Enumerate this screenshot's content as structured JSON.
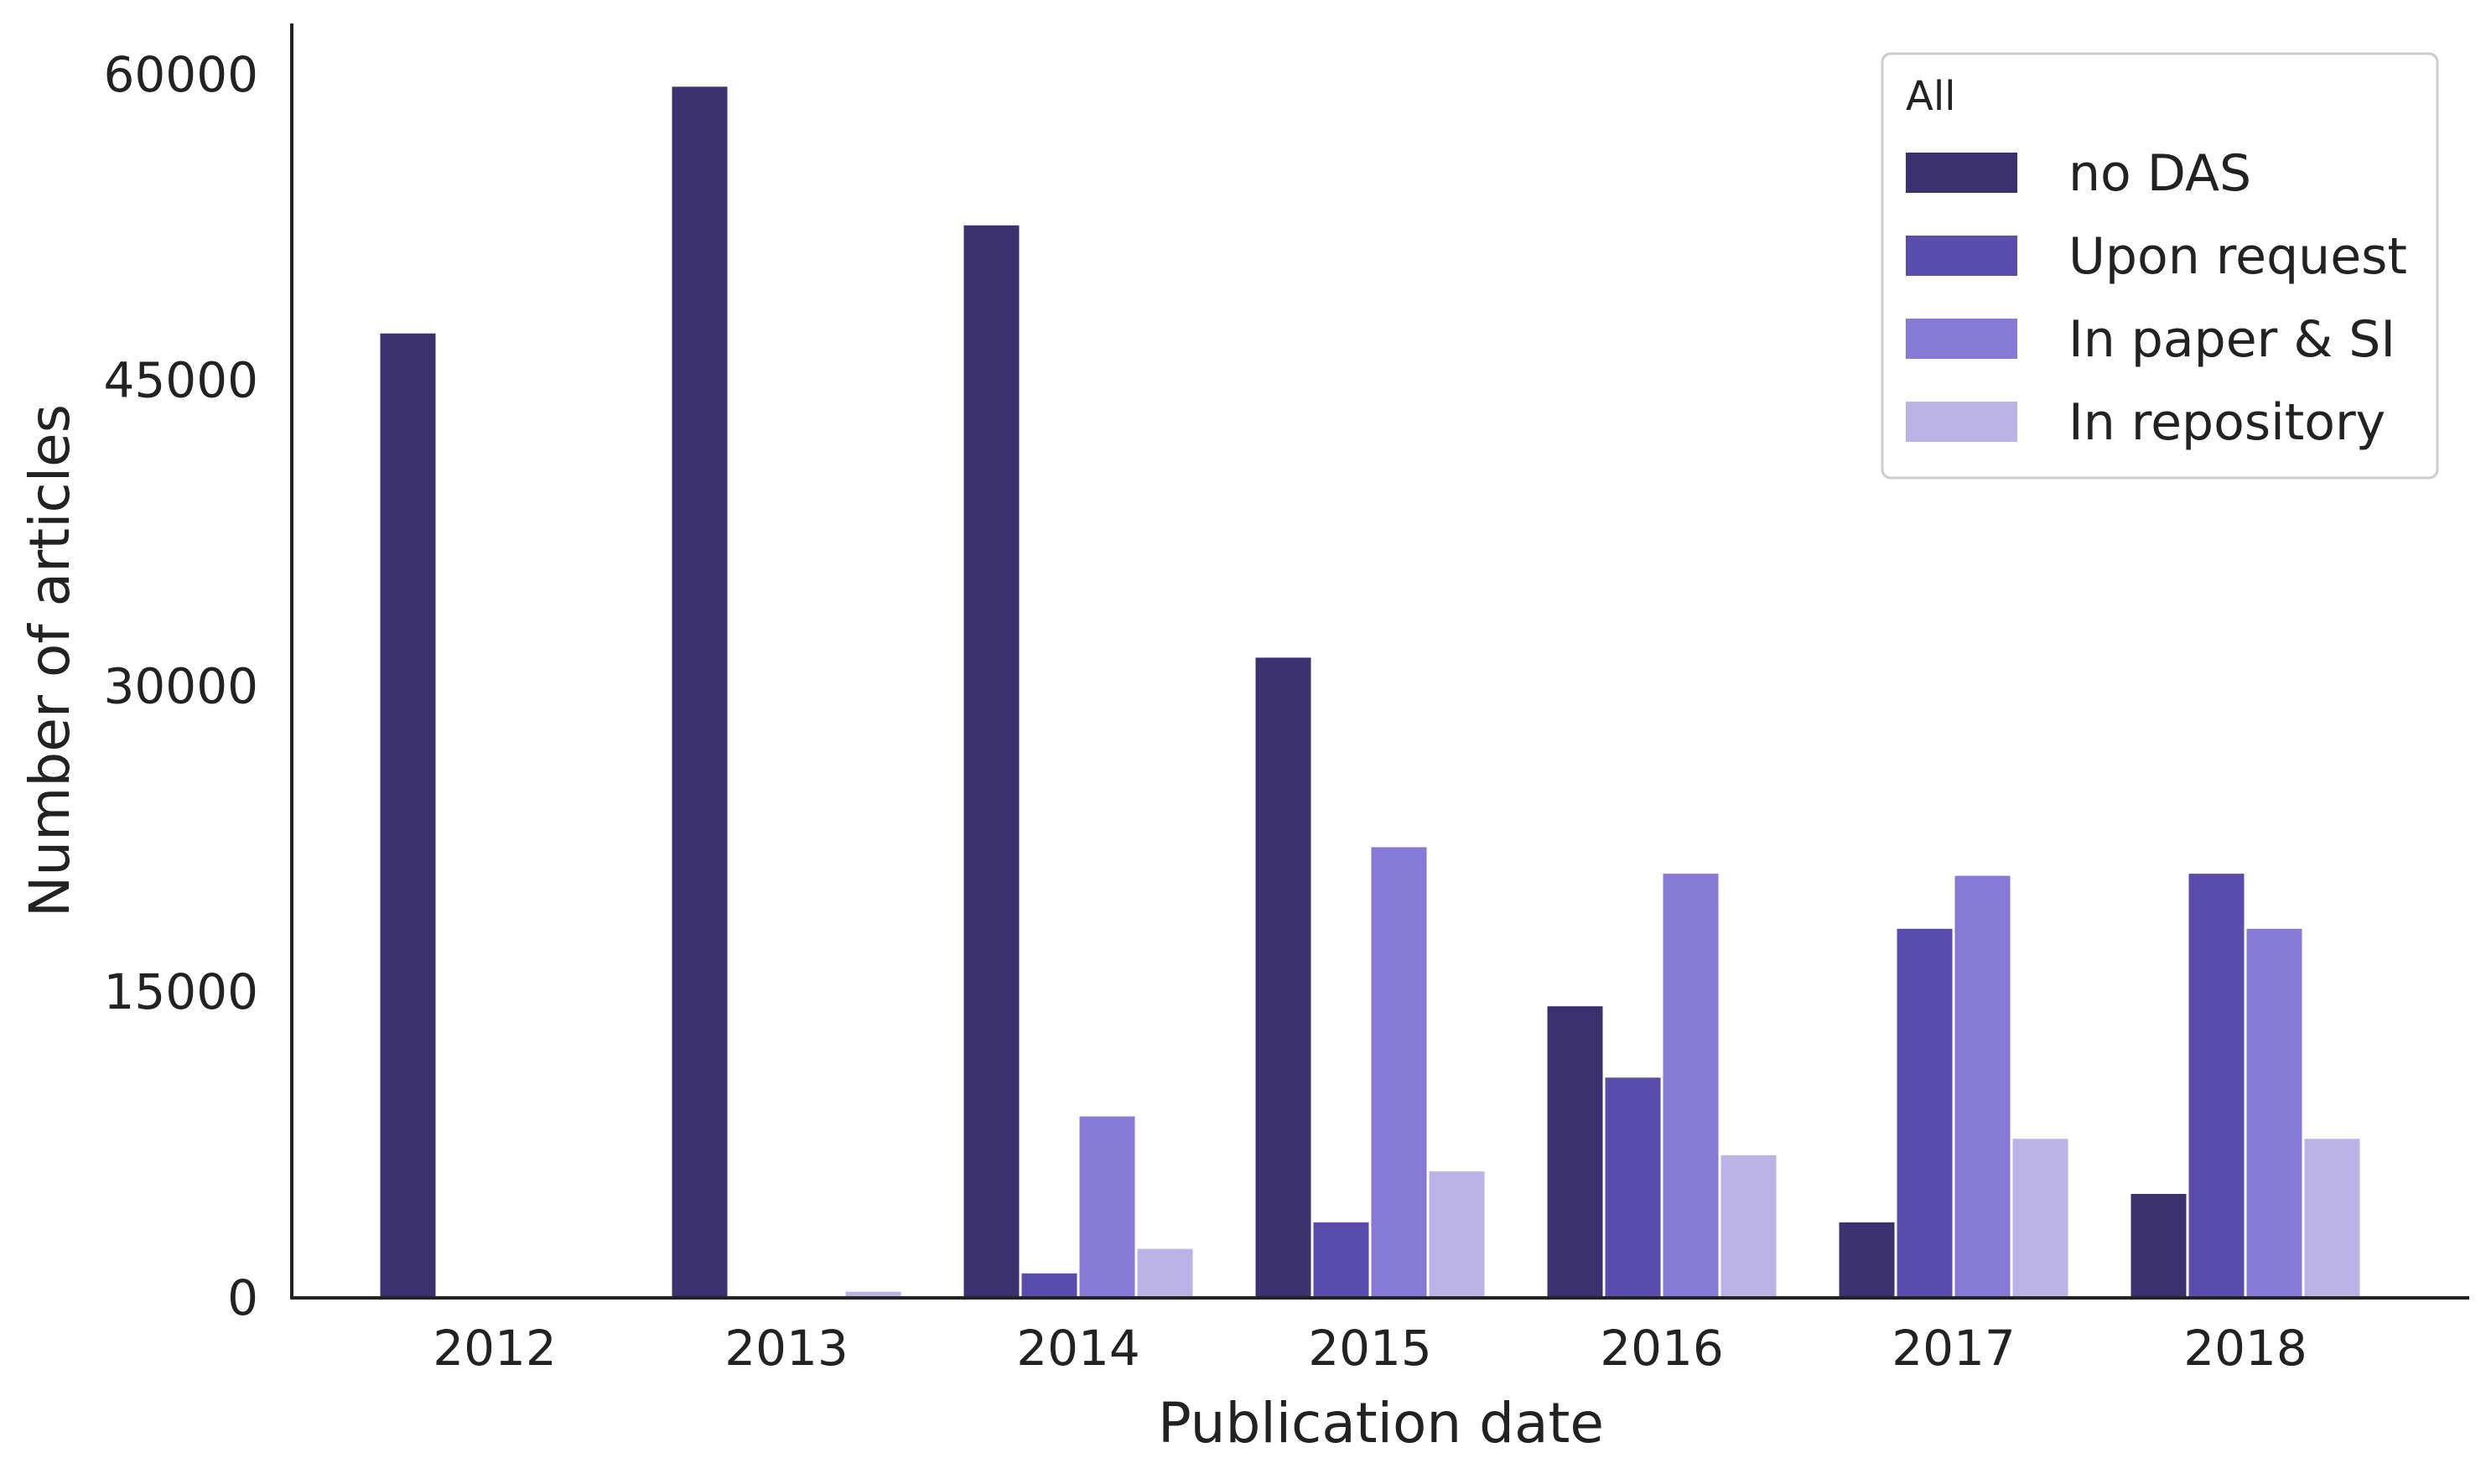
{
  "chart_data": {
    "type": "bar",
    "title": "",
    "xlabel": "Publication date",
    "ylabel": "Number of articles",
    "categories": [
      "2012",
      "2013",
      "2014",
      "2015",
      "2016",
      "2017",
      "2018"
    ],
    "ylim": [
      0,
      62500
    ],
    "yticks": [
      0,
      15000,
      30000,
      45000,
      60000
    ],
    "grid": false,
    "legend": {
      "title": "All",
      "position": "top-right"
    },
    "series": [
      {
        "name": "no DAS",
        "color": "#3b3170",
        "values": [
          47300,
          59400,
          52600,
          31400,
          14300,
          3700,
          5100
        ]
      },
      {
        "name": "Upon request",
        "color": "#5a4caa",
        "values": [
          0,
          0,
          1200,
          3700,
          10800,
          18100,
          20800
        ]
      },
      {
        "name": "In paper & SI",
        "color": "#8779d6",
        "values": [
          0,
          0,
          8900,
          22100,
          20800,
          20700,
          18100
        ]
      },
      {
        "name": "In repository",
        "color": "#bbb3e6",
        "values": [
          0,
          300,
          2400,
          6200,
          7000,
          7800,
          7800
        ]
      }
    ]
  }
}
